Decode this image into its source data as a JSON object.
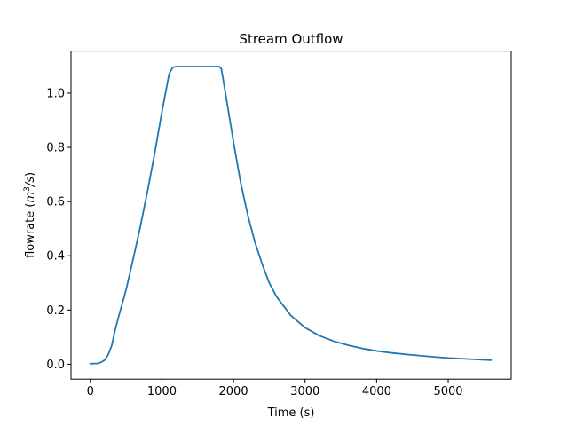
{
  "chart_data": {
    "type": "line",
    "title": "Stream Outflow",
    "xlabel": "Time (s)",
    "ylabel": {
      "base": "flowrate (",
      "italic_m": "m",
      "sup": "3",
      "rest": "/s",
      "close": ")"
    },
    "xlim": [
      -270,
      5880
    ],
    "ylim": [
      -0.055,
      1.155
    ],
    "xticks": [
      0,
      1000,
      2000,
      3000,
      4000,
      5000
    ],
    "xtick_labels": [
      "0",
      "1000",
      "2000",
      "3000",
      "4000",
      "5000"
    ],
    "yticks": [
      0.0,
      0.2,
      0.4,
      0.6,
      0.8,
      1.0
    ],
    "ytick_labels": [
      "0.0",
      "0.2",
      "0.4",
      "0.6",
      "0.8",
      "1.0"
    ],
    "grid": false,
    "series": [
      {
        "color": "#1f77b4",
        "x": [
          0,
          100,
          150,
          200,
          250,
          300,
          350,
          400,
          500,
          600,
          700,
          800,
          900,
          1000,
          1100,
          1150,
          1200,
          1300,
          1400,
          1500,
          1600,
          1700,
          1800,
          1830,
          1850,
          1900,
          2000,
          2100,
          2200,
          2300,
          2400,
          2500,
          2600,
          2800,
          3000,
          3200,
          3400,
          3600,
          3800,
          4000,
          4200,
          4500,
          4800,
          5000,
          5300,
          5600
        ],
        "y": [
          0.002,
          0.003,
          0.007,
          0.015,
          0.035,
          0.07,
          0.13,
          0.18,
          0.275,
          0.39,
          0.51,
          0.64,
          0.78,
          0.93,
          1.07,
          1.095,
          1.098,
          1.098,
          1.098,
          1.098,
          1.098,
          1.098,
          1.098,
          1.09,
          1.06,
          0.98,
          0.82,
          0.67,
          0.55,
          0.45,
          0.37,
          0.3,
          0.25,
          0.18,
          0.135,
          0.105,
          0.085,
          0.07,
          0.058,
          0.049,
          0.042,
          0.034,
          0.027,
          0.023,
          0.019,
          0.015
        ]
      }
    ]
  }
}
